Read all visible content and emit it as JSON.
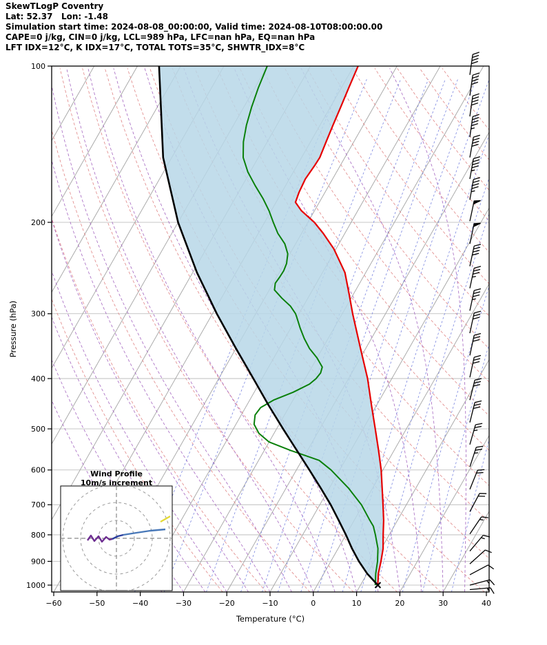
{
  "header": {
    "line1": "SkewTLogP Coventry",
    "line2": "Lat: 52.37   Lon: -1.48",
    "line3": "Simulation start time: 2024-08-08_00:00:00, Valid time: 2024-08-10T08:00:00.00",
    "line4": "CAPE=0 j/kg, CIN=0 j/kg, LCL=989 hPa, LFC=nan hPa, EQ=nan hPa",
    "line5": "LFT IDX=12°C, K IDX=17°C, TOTAL TOTS=35°C, SHWTR_IDX=8°C"
  },
  "chart_data": {
    "type": "line",
    "title": "SkewTLogP Coventry",
    "xlabel": "Temperature (°C)",
    "ylabel": "Pressure (hPa)",
    "x_ticks": [
      -60,
      -50,
      -40,
      -30,
      -20,
      -10,
      0,
      10,
      20,
      30,
      40
    ],
    "y_ticks": [
      100,
      200,
      300,
      400,
      500,
      600,
      700,
      800,
      900,
      1000
    ],
    "xlim": [
      -60,
      40
    ],
    "ylim": [
      100,
      1031
    ],
    "skew": 0.57,
    "station": {
      "surface_pressure_hpa": 1000,
      "surface_temp_c": 14
    },
    "series": [
      {
        "name": "temperature",
        "color": "#e60000",
        "width": 2.2,
        "points": [
          [
            1000,
            14
          ],
          [
            950,
            12.6
          ],
          [
            900,
            11.6
          ],
          [
            850,
            10.4
          ],
          [
            800,
            8.6
          ],
          [
            750,
            6.8
          ],
          [
            700,
            4.6
          ],
          [
            650,
            2.2
          ],
          [
            600,
            -0.4
          ],
          [
            550,
            -3.6
          ],
          [
            500,
            -7.2
          ],
          [
            450,
            -11.2
          ],
          [
            400,
            -15.6
          ],
          [
            350,
            -21.2
          ],
          [
            300,
            -27.6
          ],
          [
            275,
            -31
          ],
          [
            250,
            -34.8
          ],
          [
            225,
            -40.5
          ],
          [
            210,
            -45
          ],
          [
            200,
            -48.5
          ],
          [
            190,
            -53
          ],
          [
            183,
            -55.5
          ],
          [
            175,
            -56
          ],
          [
            165,
            -56.3
          ],
          [
            155,
            -55.9
          ],
          [
            150,
            -55.8
          ],
          [
            140,
            -56.4
          ],
          [
            130,
            -57
          ],
          [
            120,
            -57.6
          ],
          [
            110,
            -58.3
          ],
          [
            100,
            -59
          ]
        ]
      },
      {
        "name": "dewpoint",
        "color": "#0a800a",
        "width": 2,
        "points": [
          [
            1000,
            13.4
          ],
          [
            950,
            12
          ],
          [
            900,
            10.8
          ],
          [
            850,
            9.2
          ],
          [
            800,
            6.8
          ],
          [
            770,
            5.2
          ],
          [
            750,
            3.6
          ],
          [
            700,
            -0.4
          ],
          [
            650,
            -5.6
          ],
          [
            600,
            -12
          ],
          [
            575,
            -16
          ],
          [
            550,
            -24
          ],
          [
            530,
            -30
          ],
          [
            510,
            -33.5
          ],
          [
            490,
            -35.8
          ],
          [
            470,
            -36.8
          ],
          [
            455,
            -36.5
          ],
          [
            440,
            -34.5
          ],
          [
            425,
            -31
          ],
          [
            410,
            -28.3
          ],
          [
            400,
            -27.5
          ],
          [
            390,
            -27.2
          ],
          [
            380,
            -27.6
          ],
          [
            365,
            -30
          ],
          [
            350,
            -33
          ],
          [
            335,
            -35.5
          ],
          [
            320,
            -37.8
          ],
          [
            305,
            -40
          ],
          [
            300,
            -40.8
          ],
          [
            290,
            -43
          ],
          [
            280,
            -46
          ],
          [
            270,
            -48.8
          ],
          [
            262,
            -49.5
          ],
          [
            255,
            -49.3
          ],
          [
            248,
            -49.2
          ],
          [
            240,
            -49.5
          ],
          [
            230,
            -50.5
          ],
          [
            220,
            -52.5
          ],
          [
            210,
            -55.5
          ],
          [
            200,
            -58
          ],
          [
            190,
            -60.5
          ],
          [
            180,
            -63.5
          ],
          [
            170,
            -67
          ],
          [
            160,
            -70.5
          ],
          [
            150,
            -73.5
          ],
          [
            140,
            -75.5
          ],
          [
            130,
            -77
          ],
          [
            120,
            -78.2
          ],
          [
            110,
            -79.2
          ],
          [
            100,
            -80
          ]
        ]
      },
      {
        "name": "parcel",
        "color": "#000000",
        "width": 2.6,
        "points": [
          [
            1000,
            14
          ],
          [
            950,
            10
          ],
          [
            900,
            6.5
          ],
          [
            850,
            3.2
          ],
          [
            800,
            0
          ],
          [
            750,
            -3.6
          ],
          [
            700,
            -7.5
          ],
          [
            650,
            -12
          ],
          [
            600,
            -17
          ],
          [
            550,
            -22.5
          ],
          [
            500,
            -28.5
          ],
          [
            450,
            -35
          ],
          [
            400,
            -42
          ],
          [
            350,
            -50
          ],
          [
            300,
            -59
          ],
          [
            250,
            -69
          ],
          [
            200,
            -80
          ],
          [
            150,
            -92
          ],
          [
            100,
            -105
          ]
        ]
      }
    ],
    "shade": {
      "between": [
        "parcel",
        "temperature"
      ],
      "color": "#b7d7e8",
      "opacity": 0.85
    },
    "background": {
      "isotherms": {
        "start": -120,
        "end": 40,
        "step": 10,
        "color": "#a3a3a3"
      },
      "isobars": {
        "color": "#b5b5b5"
      },
      "dry_adiabats": {
        "theta_start": 250,
        "theta_end": 450,
        "step": 10,
        "color": "#e08585"
      },
      "moist_adiabats": {
        "t_start": -35,
        "t_end": 35,
        "step": 5,
        "color": "#a465c0"
      },
      "mixing_ratios": {
        "values": [
          0.1,
          0.2,
          0.5,
          1,
          1.5,
          2,
          3,
          4,
          6,
          8,
          10,
          15,
          20,
          30
        ],
        "color": "#7b86e0"
      }
    },
    "wind_barbs": [
      {
        "p": 104,
        "spd": 40,
        "rot": 8
      },
      {
        "p": 114,
        "spd": 40,
        "rot": 8
      },
      {
        "p": 125,
        "spd": 40,
        "rot": 8
      },
      {
        "p": 137,
        "spd": 45,
        "rot": 8
      },
      {
        "p": 150,
        "spd": 40,
        "rot": 10
      },
      {
        "p": 165,
        "spd": 45,
        "rot": 10
      },
      {
        "p": 181,
        "spd": 45,
        "rot": 10
      },
      {
        "p": 199,
        "spd": 50,
        "rot": 12
      },
      {
        "p": 220,
        "spd": 50,
        "rot": 12
      },
      {
        "p": 243,
        "spd": 40,
        "rot": 12
      },
      {
        "p": 268,
        "spd": 35,
        "rot": 12
      },
      {
        "p": 296,
        "spd": 35,
        "rot": 12
      },
      {
        "p": 327,
        "spd": 30,
        "rot": 12
      },
      {
        "p": 361,
        "spd": 30,
        "rot": 12
      },
      {
        "p": 398,
        "spd": 30,
        "rot": 12
      },
      {
        "p": 440,
        "spd": 30,
        "rot": 14
      },
      {
        "p": 486,
        "spd": 30,
        "rot": 14
      },
      {
        "p": 536,
        "spd": 25,
        "rot": 16
      },
      {
        "p": 592,
        "spd": 25,
        "rot": 18
      },
      {
        "p": 654,
        "spd": 20,
        "rot": 22
      },
      {
        "p": 722,
        "spd": 20,
        "rot": 28
      },
      {
        "p": 797,
        "spd": 15,
        "rot": 34
      },
      {
        "p": 860,
        "spd": 15,
        "rot": 40
      },
      {
        "p": 910,
        "spd": 10,
        "rot": 48
      },
      {
        "p": 955,
        "spd": 10,
        "rot": 62
      },
      {
        "p": 1000,
        "spd": 15,
        "rot": 75
      },
      {
        "p": 1020,
        "spd": 15,
        "rot": 85
      }
    ],
    "hodograph": {
      "title1": "Wind Profile",
      "title2": "10m/s increment",
      "rings_ms": [
        10,
        20,
        30
      ],
      "segments": [
        {
          "color": "#6d2d91",
          "points": [
            [
              127,
              785
            ],
            [
              132,
              778
            ],
            [
              137,
              786
            ],
            [
              143,
              779
            ],
            [
              148,
              787
            ],
            [
              154,
              780
            ],
            [
              159,
              784
            ],
            [
              163,
              783
            ]
          ]
        },
        {
          "color": "#2b3f9e",
          "points": [
            [
              163,
              783
            ],
            [
              171,
              779
            ],
            [
              179,
              777
            ]
          ]
        },
        {
          "color": "#4878b8",
          "points": [
            [
              179,
              777
            ],
            [
              198,
              774
            ],
            [
              218,
              771
            ],
            [
              240,
              769
            ]
          ]
        },
        {
          "color": "#e3d935",
          "points": [
            [
              233,
              758
            ],
            [
              247,
              750
            ]
          ]
        }
      ]
    }
  }
}
